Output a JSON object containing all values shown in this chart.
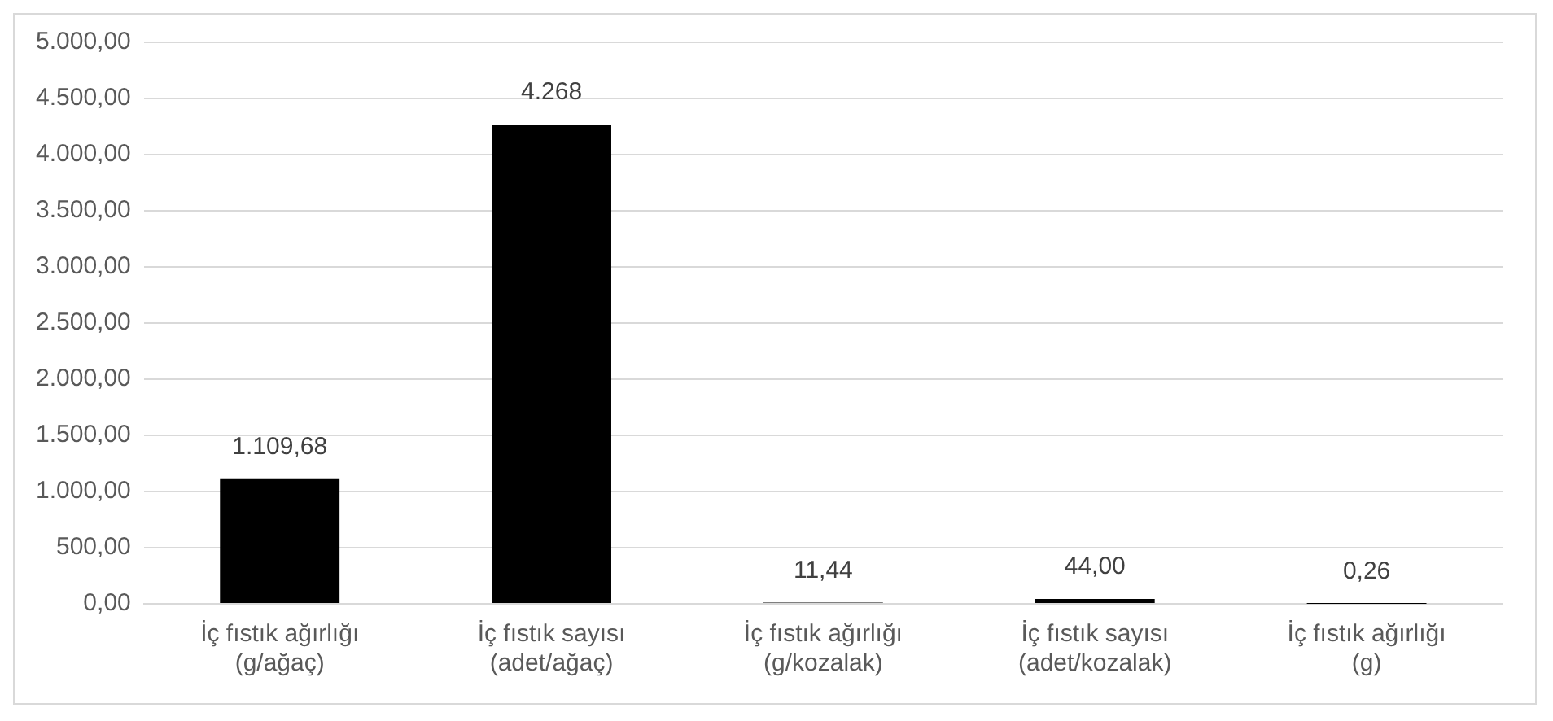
{
  "chart_data": {
    "type": "bar",
    "categories": [
      "İç fıstık ağırlığı\n(g/ağaç)",
      "İç fıstık sayısı\n(adet/ağaç)",
      "İç fıstık ağırlığı\n(g/kozalak)",
      "İç fıstık sayısı\n(adet/kozalak)",
      "İç fıstık ağırlığı\n(g)"
    ],
    "values": [
      1109.68,
      4268,
      11.44,
      44,
      0.26
    ],
    "value_labels": [
      "1.109,68",
      "4.268",
      "11,44",
      "44,00",
      "0,26"
    ],
    "color": "#000000",
    "ylim": [
      0,
      5000
    ],
    "yticks": [
      {
        "value": 0,
        "label": "0,00"
      },
      {
        "value": 500,
        "label": "500,00"
      },
      {
        "value": 1000,
        "label": "1.000,00"
      },
      {
        "value": 1500,
        "label": "1.500,00"
      },
      {
        "value": 2000,
        "label": "2.000,00"
      },
      {
        "value": 2500,
        "label": "2.500,00"
      },
      {
        "value": 3000,
        "label": "3.000,00"
      },
      {
        "value": 3500,
        "label": "3.500,00"
      },
      {
        "value": 4000,
        "label": "4.000,00"
      },
      {
        "value": 4500,
        "label": "4.500,00"
      },
      {
        "value": 5000,
        "label": "5.000,00"
      }
    ],
    "grid": "y"
  }
}
